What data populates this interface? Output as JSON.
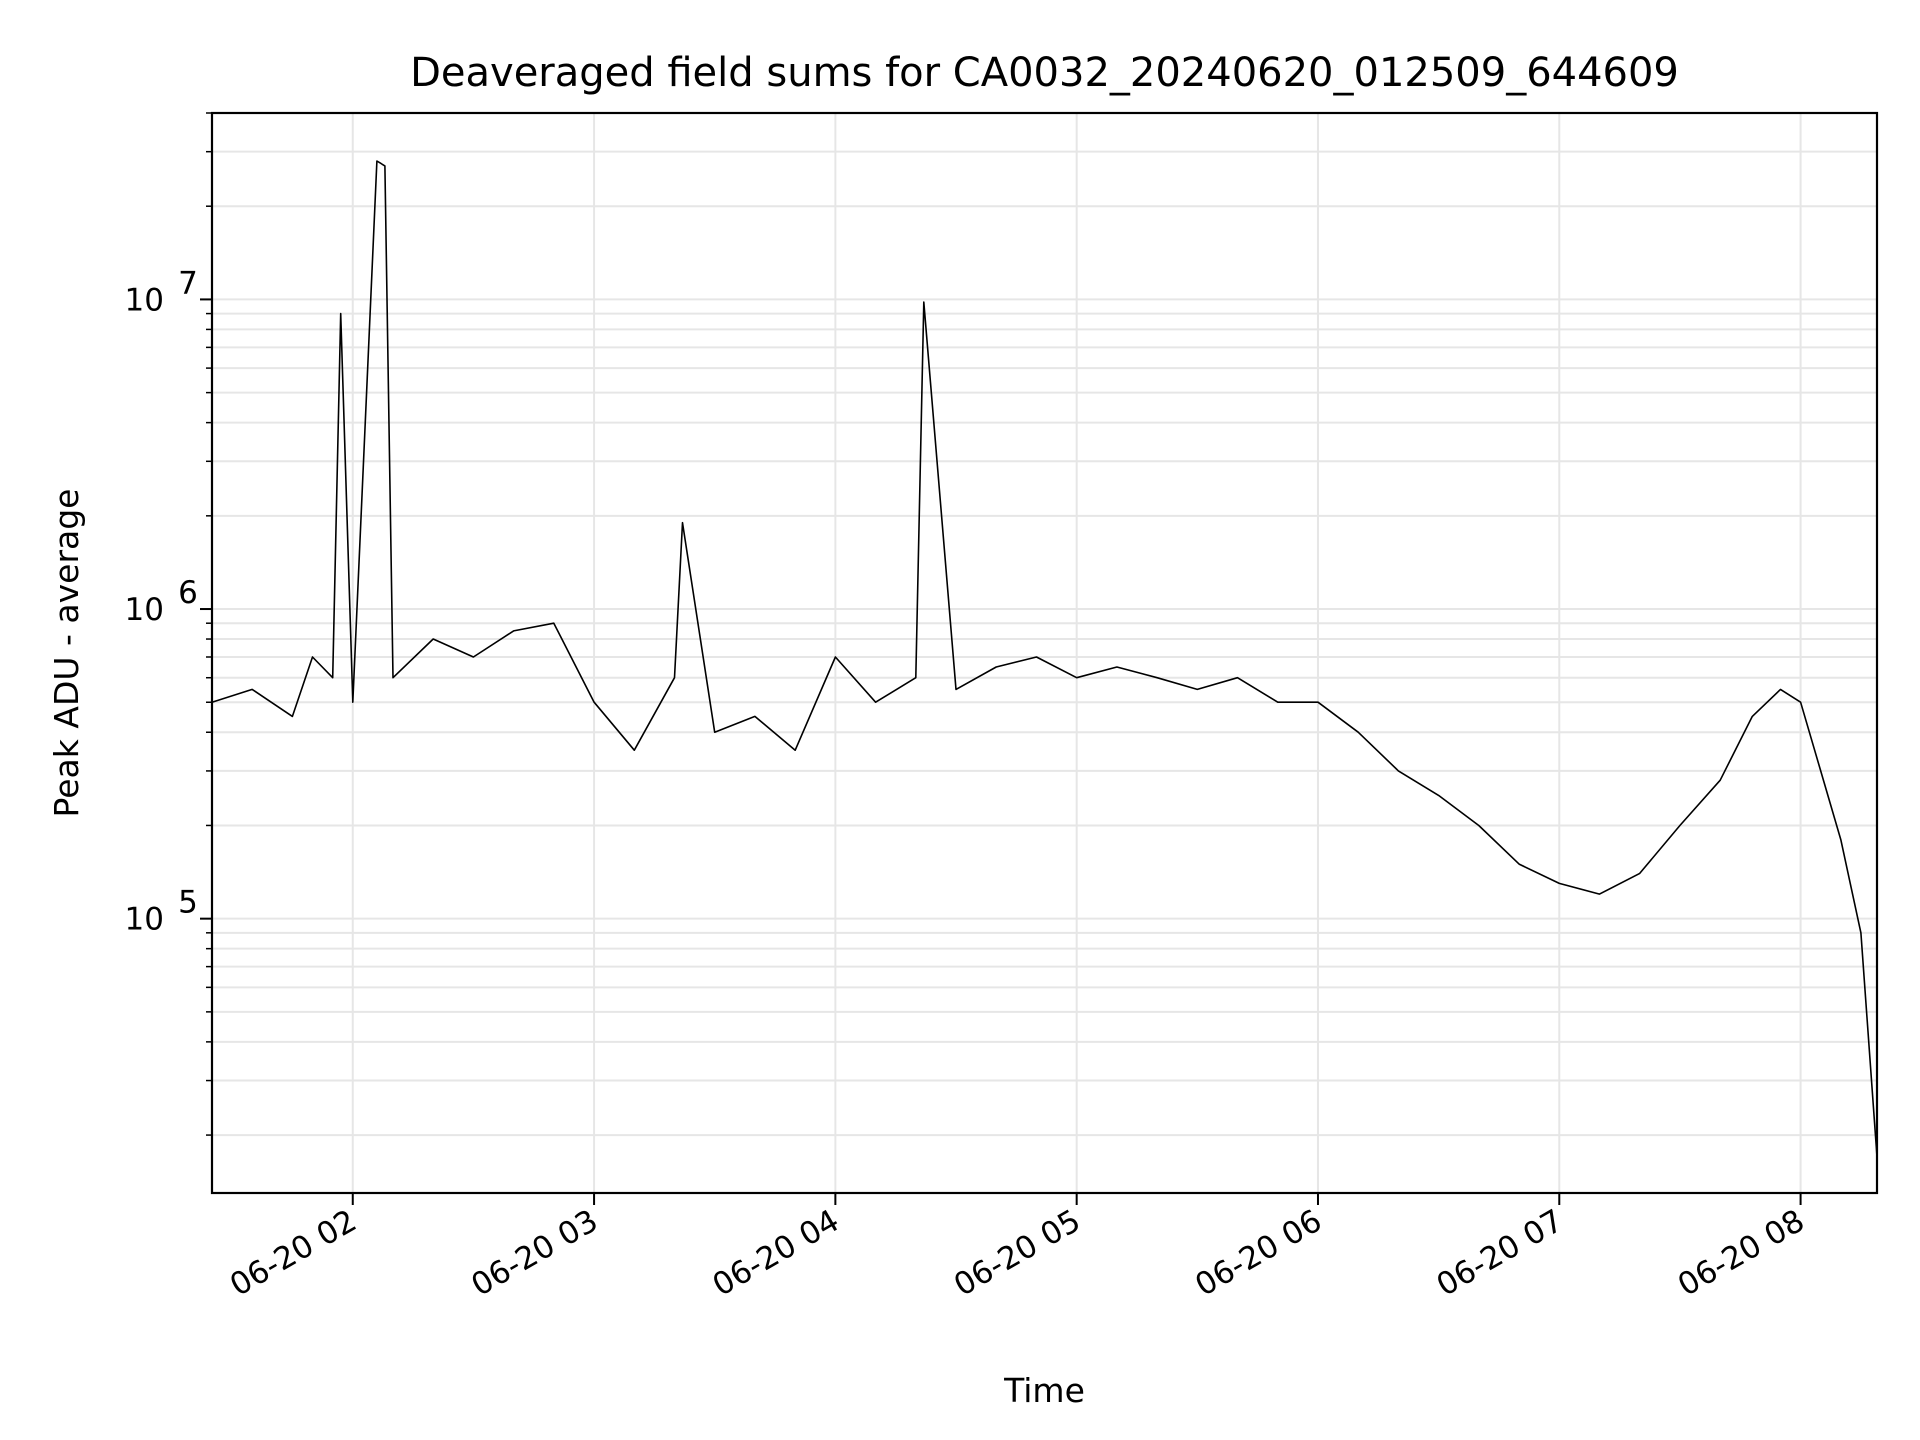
{
  "chart_data": {
    "type": "line",
    "title": "Deaveraged field sums for CA0032_20240620_012509_644609",
    "xlabel": "Time",
    "ylabel": "Peak ADU - average",
    "yscale": "log",
    "grid": true,
    "legend": "none",
    "series_color": "#000000",
    "grid_color": "#e6e6e6",
    "xlim": [
      "06-20 01:25",
      "06-20 08:19"
    ],
    "ylim": [
      13000,
      40000000
    ],
    "x_ticks": [
      {
        "value": "06-20 02:00",
        "label": "06-20 02"
      },
      {
        "value": "06-20 03:00",
        "label": "06-20 03"
      },
      {
        "value": "06-20 04:00",
        "label": "06-20 04"
      },
      {
        "value": "06-20 05:00",
        "label": "06-20 05"
      },
      {
        "value": "06-20 06:00",
        "label": "06-20 06"
      },
      {
        "value": "06-20 07:00",
        "label": "06-20 07"
      },
      {
        "value": "06-20 08:00",
        "label": "06-20 08"
      }
    ],
    "y_ticks": [
      {
        "value": 100000,
        "base": "10",
        "exp": "5"
      },
      {
        "value": 1000000,
        "base": "10",
        "exp": "6"
      },
      {
        "value": 10000000,
        "base": "10",
        "exp": "7"
      }
    ],
    "series": [
      {
        "x": [
          "06-20 01:25",
          "06-20 01:35",
          "06-20 01:45",
          "06-20 01:50",
          "06-20 01:55",
          "06-20 01:57",
          "06-20 02:00",
          "06-20 02:06",
          "06-20 02:08",
          "06-20 02:10",
          "06-20 02:20",
          "06-20 02:30",
          "06-20 02:40",
          "06-20 02:50",
          "06-20 03:00",
          "06-20 03:10",
          "06-20 03:20",
          "06-20 03:22",
          "06-20 03:30",
          "06-20 03:40",
          "06-20 03:50",
          "06-20 04:00",
          "06-20 04:10",
          "06-20 04:20",
          "06-20 04:22",
          "06-20 04:30",
          "06-20 04:40",
          "06-20 04:50",
          "06-20 05:00",
          "06-20 05:10",
          "06-20 05:20",
          "06-20 05:30",
          "06-20 05:40",
          "06-20 05:50",
          "06-20 06:00",
          "06-20 06:10",
          "06-20 06:20",
          "06-20 06:30",
          "06-20 06:40",
          "06-20 06:50",
          "06-20 07:00",
          "06-20 07:10",
          "06-20 07:20",
          "06-20 07:30",
          "06-20 07:40",
          "06-20 07:48",
          "06-20 07:55",
          "06-20 08:00",
          "06-20 08:05",
          "06-20 08:10",
          "06-20 08:15",
          "06-20 08:19"
        ],
        "y": [
          500000,
          550000,
          450000,
          700000,
          600000,
          9000000,
          500000,
          28000000,
          27000000,
          600000,
          800000,
          700000,
          850000,
          900000,
          500000,
          350000,
          600000,
          1900000,
          400000,
          450000,
          350000,
          700000,
          500000,
          600000,
          9800000,
          550000,
          650000,
          700000,
          600000,
          650000,
          600000,
          550000,
          600000,
          500000,
          500000,
          400000,
          300000,
          250000,
          200000,
          150000,
          130000,
          120000,
          140000,
          200000,
          280000,
          450000,
          550000,
          500000,
          300000,
          180000,
          90000,
          17000
        ]
      }
    ]
  }
}
